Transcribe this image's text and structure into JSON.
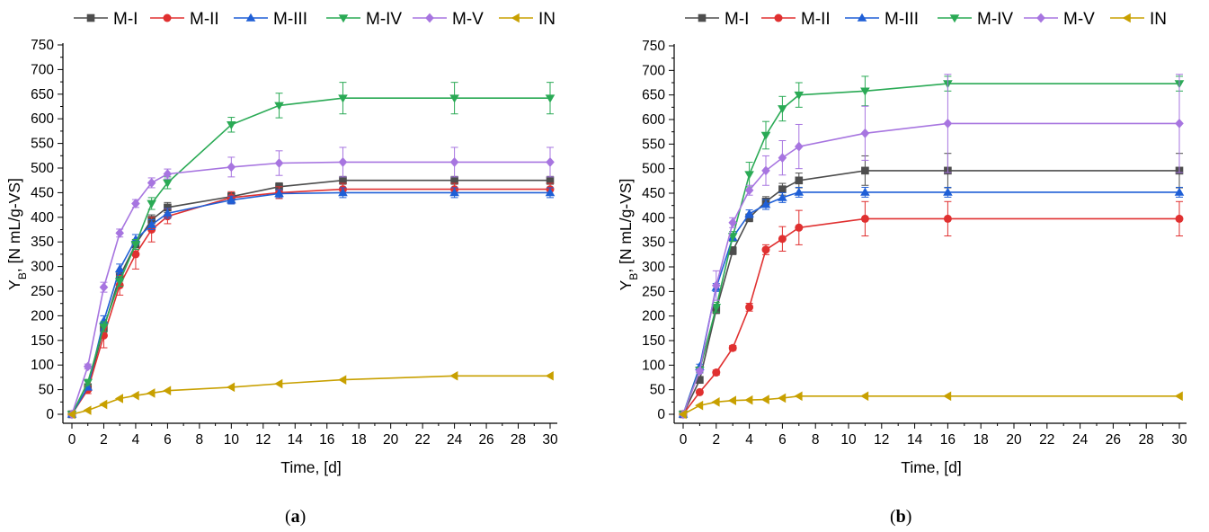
{
  "panels": [
    {
      "caption_open": "(",
      "caption_letter": "a",
      "caption_close": ")"
    },
    {
      "caption_open": "(",
      "caption_letter": "b",
      "caption_close": ")"
    }
  ],
  "colors": {
    "M-I": "#4d4d4d",
    "M-II": "#e03030",
    "M-III": "#1f5fd6",
    "M-IV": "#2aaa55",
    "M-V": "#a775e0",
    "IN": "#c8a000"
  },
  "markers": {
    "M-I": "square",
    "M-II": "circle",
    "M-III": "triangle-up",
    "M-IV": "triangle-down",
    "M-V": "diamond",
    "IN": "triangle-left"
  },
  "chart_data": [
    {
      "type": "line",
      "xlabel": "Time, [d]",
      "ylabel_main": "Y",
      "ylabel_sub": "B",
      "ylabel_rest": ", [N mL/g-VS]",
      "xlim": [
        0,
        30
      ],
      "ylim": [
        0,
        750
      ],
      "xticks": [
        0,
        2,
        4,
        6,
        8,
        10,
        12,
        14,
        16,
        18,
        20,
        22,
        24,
        26,
        28,
        30
      ],
      "yticks": [
        0,
        50,
        100,
        150,
        200,
        250,
        300,
        350,
        400,
        450,
        500,
        550,
        600,
        650,
        700,
        750
      ],
      "grid": false,
      "legend": "top",
      "series": [
        {
          "name": "M-I",
          "x": [
            0,
            1,
            2,
            3,
            4,
            5,
            6,
            10,
            13,
            17,
            24,
            30
          ],
          "y": [
            0,
            55,
            175,
            280,
            345,
            395,
            420,
            442,
            462,
            475,
            475,
            475
          ],
          "err": [
            0,
            5,
            8,
            10,
            10,
            10,
            10,
            8,
            8,
            8,
            8,
            8
          ]
        },
        {
          "name": "M-II",
          "x": [
            0,
            1,
            2,
            3,
            4,
            5,
            6,
            10,
            13,
            17,
            24,
            30
          ],
          "y": [
            0,
            50,
            160,
            262,
            325,
            375,
            402,
            440,
            450,
            457,
            457,
            457
          ],
          "err": [
            0,
            8,
            25,
            20,
            30,
            25,
            15,
            12,
            12,
            12,
            12,
            12
          ]
        },
        {
          "name": "M-III",
          "x": [
            0,
            1,
            2,
            3,
            4,
            5,
            6,
            10,
            13,
            17,
            24,
            30
          ],
          "y": [
            0,
            55,
            190,
            295,
            355,
            385,
            408,
            435,
            448,
            450,
            450,
            450
          ],
          "err": [
            0,
            5,
            10,
            10,
            10,
            10,
            10,
            8,
            8,
            10,
            10,
            10
          ]
        },
        {
          "name": "M-IV",
          "x": [
            0,
            1,
            2,
            3,
            4,
            5,
            6,
            10,
            13,
            17,
            24,
            30
          ],
          "y": [
            0,
            65,
            178,
            270,
            345,
            428,
            470,
            588,
            627,
            642,
            642,
            642
          ],
          "err": [
            0,
            5,
            10,
            10,
            10,
            12,
            12,
            15,
            25,
            32,
            32,
            32
          ]
        },
        {
          "name": "M-V",
          "x": [
            0,
            1,
            2,
            3,
            4,
            5,
            6,
            10,
            13,
            17,
            24,
            30
          ],
          "y": [
            0,
            97,
            258,
            368,
            428,
            470,
            488,
            502,
            510,
            512,
            512,
            512
          ],
          "err": [
            0,
            5,
            10,
            8,
            8,
            10,
            10,
            20,
            25,
            30,
            30,
            30
          ]
        },
        {
          "name": "IN",
          "x": [
            0,
            1,
            2,
            3,
            4,
            5,
            6,
            10,
            13,
            17,
            24,
            30
          ],
          "y": [
            0,
            8,
            20,
            32,
            38,
            43,
            48,
            55,
            62,
            70,
            78,
            78
          ],
          "err": [
            0,
            0,
            0,
            0,
            0,
            0,
            0,
            0,
            0,
            0,
            0,
            0
          ]
        }
      ]
    },
    {
      "type": "line",
      "xlabel": "Time, [d]",
      "ylabel_main": "Y",
      "ylabel_sub": "B",
      "ylabel_rest": ", [N mL/g-VS]",
      "xlim": [
        0,
        30
      ],
      "ylim": [
        0,
        750
      ],
      "xticks": [
        0,
        2,
        4,
        6,
        8,
        10,
        12,
        14,
        16,
        18,
        20,
        22,
        24,
        26,
        28,
        30
      ],
      "yticks": [
        0,
        50,
        100,
        150,
        200,
        250,
        300,
        350,
        400,
        450,
        500,
        550,
        600,
        650,
        700,
        750
      ],
      "grid": false,
      "legend": "top",
      "series": [
        {
          "name": "M-I",
          "x": [
            0,
            1,
            2,
            3,
            4,
            5,
            6,
            7,
            11,
            16,
            30
          ],
          "y": [
            0,
            70,
            213,
            333,
            400,
            433,
            458,
            476,
            496,
            496,
            496
          ],
          "err": [
            0,
            5,
            8,
            8,
            8,
            10,
            12,
            15,
            30,
            35,
            35
          ]
        },
        {
          "name": "M-II",
          "x": [
            0,
            1,
            2,
            3,
            4,
            5,
            6,
            7,
            11,
            16,
            30
          ],
          "y": [
            0,
            45,
            85,
            135,
            218,
            335,
            357,
            380,
            398,
            398,
            398
          ],
          "err": [
            0,
            3,
            5,
            5,
            8,
            10,
            25,
            35,
            35,
            35,
            35
          ]
        },
        {
          "name": "M-III",
          "x": [
            0,
            1,
            2,
            3,
            4,
            5,
            6,
            7,
            11,
            16,
            30
          ],
          "y": [
            0,
            97,
            258,
            360,
            408,
            427,
            441,
            452,
            452,
            452,
            452
          ],
          "err": [
            0,
            5,
            8,
            8,
            8,
            10,
            10,
            10,
            10,
            10,
            10
          ]
        },
        {
          "name": "M-IV",
          "x": [
            0,
            1,
            2,
            3,
            4,
            5,
            6,
            7,
            11,
            16,
            30
          ],
          "y": [
            0,
            90,
            218,
            362,
            488,
            568,
            622,
            650,
            658,
            673,
            673
          ],
          "err": [
            0,
            5,
            10,
            10,
            25,
            28,
            25,
            25,
            30,
            15,
            15
          ]
        },
        {
          "name": "M-V",
          "x": [
            0,
            1,
            2,
            3,
            4,
            5,
            6,
            7,
            11,
            16,
            30
          ],
          "y": [
            0,
            88,
            262,
            390,
            456,
            496,
            522,
            545,
            572,
            592,
            592
          ],
          "err": [
            0,
            5,
            30,
            10,
            10,
            30,
            35,
            45,
            55,
            100,
            100
          ]
        },
        {
          "name": "IN",
          "x": [
            0,
            1,
            2,
            3,
            4,
            5,
            6,
            7,
            11,
            16,
            30
          ],
          "y": [
            0,
            18,
            25,
            28,
            29,
            30,
            33,
            37,
            37,
            37,
            37
          ],
          "err": [
            0,
            0,
            0,
            0,
            0,
            0,
            0,
            0,
            0,
            0,
            0
          ]
        }
      ]
    }
  ]
}
